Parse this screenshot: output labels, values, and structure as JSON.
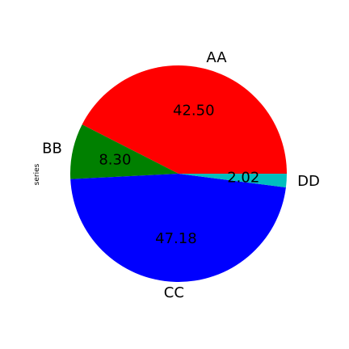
{
  "chart_data": {
    "type": "pie",
    "title": "",
    "xlabel": "",
    "ylabel": "series",
    "start_angle_deg": 0,
    "direction": "counterclockwise",
    "autopct_format": "%.2f",
    "slices": [
      {
        "label": "AA",
        "value": 42.5,
        "pct_text": "42.50",
        "color": "#ff0000"
      },
      {
        "label": "BB",
        "value": 8.3,
        "pct_text": "8.30",
        "color": "#008000"
      },
      {
        "label": "CC",
        "value": 47.18,
        "pct_text": "47.18",
        "color": "#0000ff"
      },
      {
        "label": "DD",
        "value": 2.02,
        "pct_text": "2.02",
        "color": "#00bfbf"
      }
    ]
  }
}
